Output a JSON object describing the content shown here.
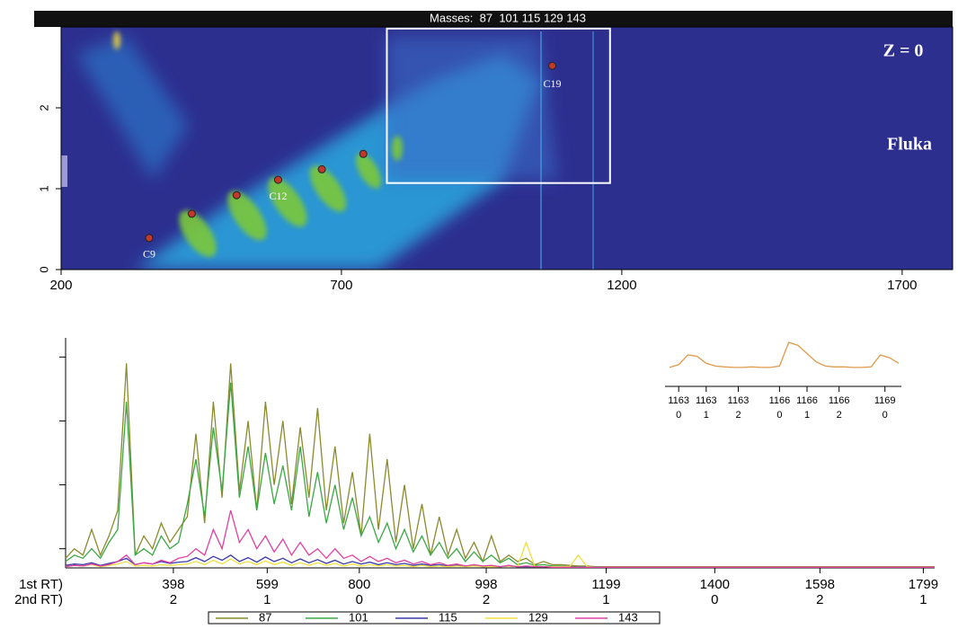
{
  "chart_data": [
    {
      "type": "scatter",
      "title": "Masses:  87  101 115 129 143",
      "xlim": [
        200,
        1790
      ],
      "ylim": [
        0,
        3
      ],
      "xticks": [
        200,
        700,
        1200,
        1700
      ],
      "yticks": [
        0,
        1,
        2
      ],
      "series": [
        {
          "color": "#c0392b",
          "x": [
            357,
            433,
            513,
            587,
            665,
            739,
            1076
          ],
          "values": [
            0.39,
            0.69,
            0.92,
            1.11,
            1.24,
            1.43,
            2.52
          ],
          "point_labels": [
            "C9",
            null,
            null,
            "C12",
            null,
            null,
            "C19"
          ]
        }
      ],
      "highlight": {
        "x": [
          781,
          1179
        ],
        "y": [
          1.07,
          2.98
        ]
      },
      "annotations": [
        "Z = 0",
        "Fluka"
      ]
    },
    {
      "type": "line",
      "xlim": [
        0,
        1000
      ],
      "ylim": [
        0.7,
        4.3
      ],
      "yticks": [
        1,
        2,
        3,
        4
      ],
      "xticks": [
        {
          "value": 124,
          "label": "398"
        },
        {
          "value": 232,
          "label": "599"
        },
        {
          "value": 338,
          "label": "800"
        },
        {
          "value": 484,
          "label": "998"
        },
        {
          "value": 622,
          "label": "1199"
        },
        {
          "value": 747,
          "label": "1400"
        },
        {
          "value": 868,
          "label": "1598"
        },
        {
          "value": 987,
          "label": "1799"
        }
      ],
      "xticks_secondary": [
        "2",
        "1",
        "0",
        "2",
        "1",
        "0",
        "2",
        "1"
      ],
      "xlabel": "1st RT)",
      "xlabel_secondary": "2nd RT)",
      "x": [
        0,
        10,
        20,
        30,
        40,
        50,
        60,
        70,
        80,
        90,
        100,
        110,
        120,
        130,
        140,
        150,
        160,
        170,
        180,
        190,
        200,
        210,
        220,
        230,
        240,
        250,
        260,
        270,
        280,
        290,
        300,
        310,
        320,
        330,
        340,
        350,
        360,
        370,
        380,
        390,
        400,
        410,
        420,
        430,
        440,
        450,
        460,
        470,
        480,
        490,
        500,
        510,
        520,
        530,
        540,
        550,
        560,
        570,
        580,
        590,
        600,
        610,
        620,
        1000
      ],
      "series": [
        {
          "name": "87",
          "color": "#8b8a2c",
          "values": [
            0.85,
            1.0,
            0.9,
            1.3,
            0.9,
            1.2,
            1.6,
            3.9,
            0.9,
            1.2,
            1.0,
            1.4,
            1.1,
            1.3,
            1.5,
            2.8,
            1.4,
            3.3,
            1.8,
            3.9,
            1.9,
            3.0,
            1.6,
            3.3,
            2.0,
            3.0,
            1.7,
            2.9,
            1.8,
            3.2,
            1.6,
            2.6,
            1.4,
            2.2,
            1.2,
            2.8,
            1.3,
            2.4,
            1.1,
            2.0,
            1.0,
            1.7,
            0.9,
            1.5,
            0.9,
            1.3,
            0.85,
            1.1,
            0.8,
            1.2,
            0.8,
            0.9,
            0.8,
            0.85,
            0.75,
            0.8,
            0.75,
            0.75,
            0.74,
            0.73,
            0.73,
            0.72,
            0.72,
            0.72
          ]
        },
        {
          "name": "101",
          "color": "#3aa845",
          "values": [
            0.8,
            0.9,
            0.85,
            1.0,
            0.85,
            1.1,
            1.3,
            3.3,
            0.9,
            1.0,
            0.9,
            1.2,
            1.0,
            1.1,
            1.7,
            2.4,
            1.5,
            2.9,
            1.9,
            3.6,
            1.8,
            2.6,
            1.6,
            2.5,
            1.7,
            2.3,
            1.6,
            2.6,
            1.5,
            2.2,
            1.4,
            2.0,
            1.3,
            1.8,
            1.2,
            1.5,
            1.1,
            1.4,
            1.0,
            1.3,
            0.95,
            1.2,
            0.9,
            1.1,
            0.85,
            1.0,
            0.8,
            0.95,
            0.8,
            0.9,
            0.78,
            0.85,
            0.75,
            0.78,
            0.74,
            0.75,
            0.73,
            0.73,
            0.72,
            0.72,
            0.72,
            0.72,
            0.71,
            0.71
          ]
        },
        {
          "name": "115",
          "color": "#3a3aa8",
          "values": [
            0.74,
            0.76,
            0.75,
            0.78,
            0.74,
            0.77,
            0.8,
            0.85,
            0.75,
            0.78,
            0.76,
            0.8,
            0.77,
            0.79,
            0.8,
            0.86,
            0.8,
            0.88,
            0.82,
            0.9,
            0.8,
            0.86,
            0.79,
            0.87,
            0.8,
            0.85,
            0.78,
            0.84,
            0.78,
            0.83,
            0.77,
            0.82,
            0.76,
            0.8,
            0.76,
            0.79,
            0.75,
            0.78,
            0.75,
            0.77,
            0.74,
            0.76,
            0.74,
            0.75,
            0.73,
            0.74,
            0.73,
            0.74,
            0.72,
            0.73,
            0.72,
            0.73,
            0.72,
            0.72,
            0.72,
            0.72,
            0.71,
            0.71,
            0.71,
            0.71,
            0.71,
            0.71,
            0.71,
            0.71
          ]
        },
        {
          "name": "129",
          "color": "#f0e040",
          "values": [
            0.72,
            0.74,
            0.73,
            0.75,
            0.72,
            0.74,
            0.76,
            0.8,
            0.73,
            0.74,
            0.73,
            0.75,
            0.74,
            0.75,
            0.76,
            0.8,
            0.75,
            0.82,
            0.76,
            0.84,
            0.76,
            0.8,
            0.75,
            0.81,
            0.75,
            0.79,
            0.74,
            0.78,
            0.74,
            0.78,
            0.74,
            0.77,
            0.73,
            0.76,
            0.73,
            0.75,
            0.73,
            0.75,
            0.73,
            0.74,
            0.72,
            0.74,
            0.72,
            0.73,
            0.72,
            0.73,
            0.72,
            0.73,
            0.72,
            0.72,
            0.72,
            0.73,
            0.72,
            1.1,
            0.72,
            0.72,
            0.72,
            0.72,
            0.72,
            0.9,
            0.72,
            0.71,
            0.71,
            0.71
          ]
        },
        {
          "name": "143",
          "color": "#e040a0",
          "values": [
            0.72,
            0.74,
            0.73,
            0.76,
            0.73,
            0.75,
            0.8,
            0.9,
            0.75,
            0.78,
            0.76,
            0.82,
            0.78,
            0.85,
            0.88,
            1.0,
            0.9,
            1.3,
            1.0,
            1.6,
            1.1,
            1.3,
            1.0,
            1.2,
            0.95,
            1.15,
            0.9,
            1.1,
            0.9,
            1.0,
            0.85,
            1.0,
            0.85,
            0.9,
            0.8,
            0.88,
            0.8,
            0.85,
            0.78,
            0.82,
            0.76,
            0.8,
            0.75,
            0.78,
            0.74,
            0.76,
            0.73,
            0.75,
            0.73,
            0.74,
            0.72,
            0.74,
            0.72,
            0.73,
            0.72,
            0.72,
            0.71,
            0.71,
            0.71,
            0.71,
            0.71,
            0.71,
            0.71,
            0.71
          ]
        }
      ]
    },
    {
      "type": "line",
      "color": "#e09a4a",
      "xlim": [
        0,
        25
      ],
      "ylim": [
        0,
        1.1
      ],
      "values": [
        0.1,
        0.2,
        0.55,
        0.5,
        0.25,
        0.15,
        0.12,
        0.1,
        0.1,
        0.12,
        0.1,
        0.1,
        0.15,
        1.0,
        0.9,
        0.6,
        0.3,
        0.15,
        0.12,
        0.12,
        0.1,
        0.1,
        0.12,
        0.55,
        0.45,
        0.25
      ],
      "xticks": [
        {
          "value": 1,
          "label": "1163"
        },
        {
          "value": 4,
          "label": "1163"
        },
        {
          "value": 7.5,
          "label": "1163"
        },
        {
          "value": 12,
          "label": "1166"
        },
        {
          "value": 15,
          "label": "1166"
        },
        {
          "value": 18.5,
          "label": "1166"
        },
        {
          "value": 23.5,
          "label": "1169"
        }
      ],
      "xticks_secondary": [
        "0",
        "1",
        "2",
        "0",
        "1",
        "2",
        "0"
      ]
    }
  ]
}
